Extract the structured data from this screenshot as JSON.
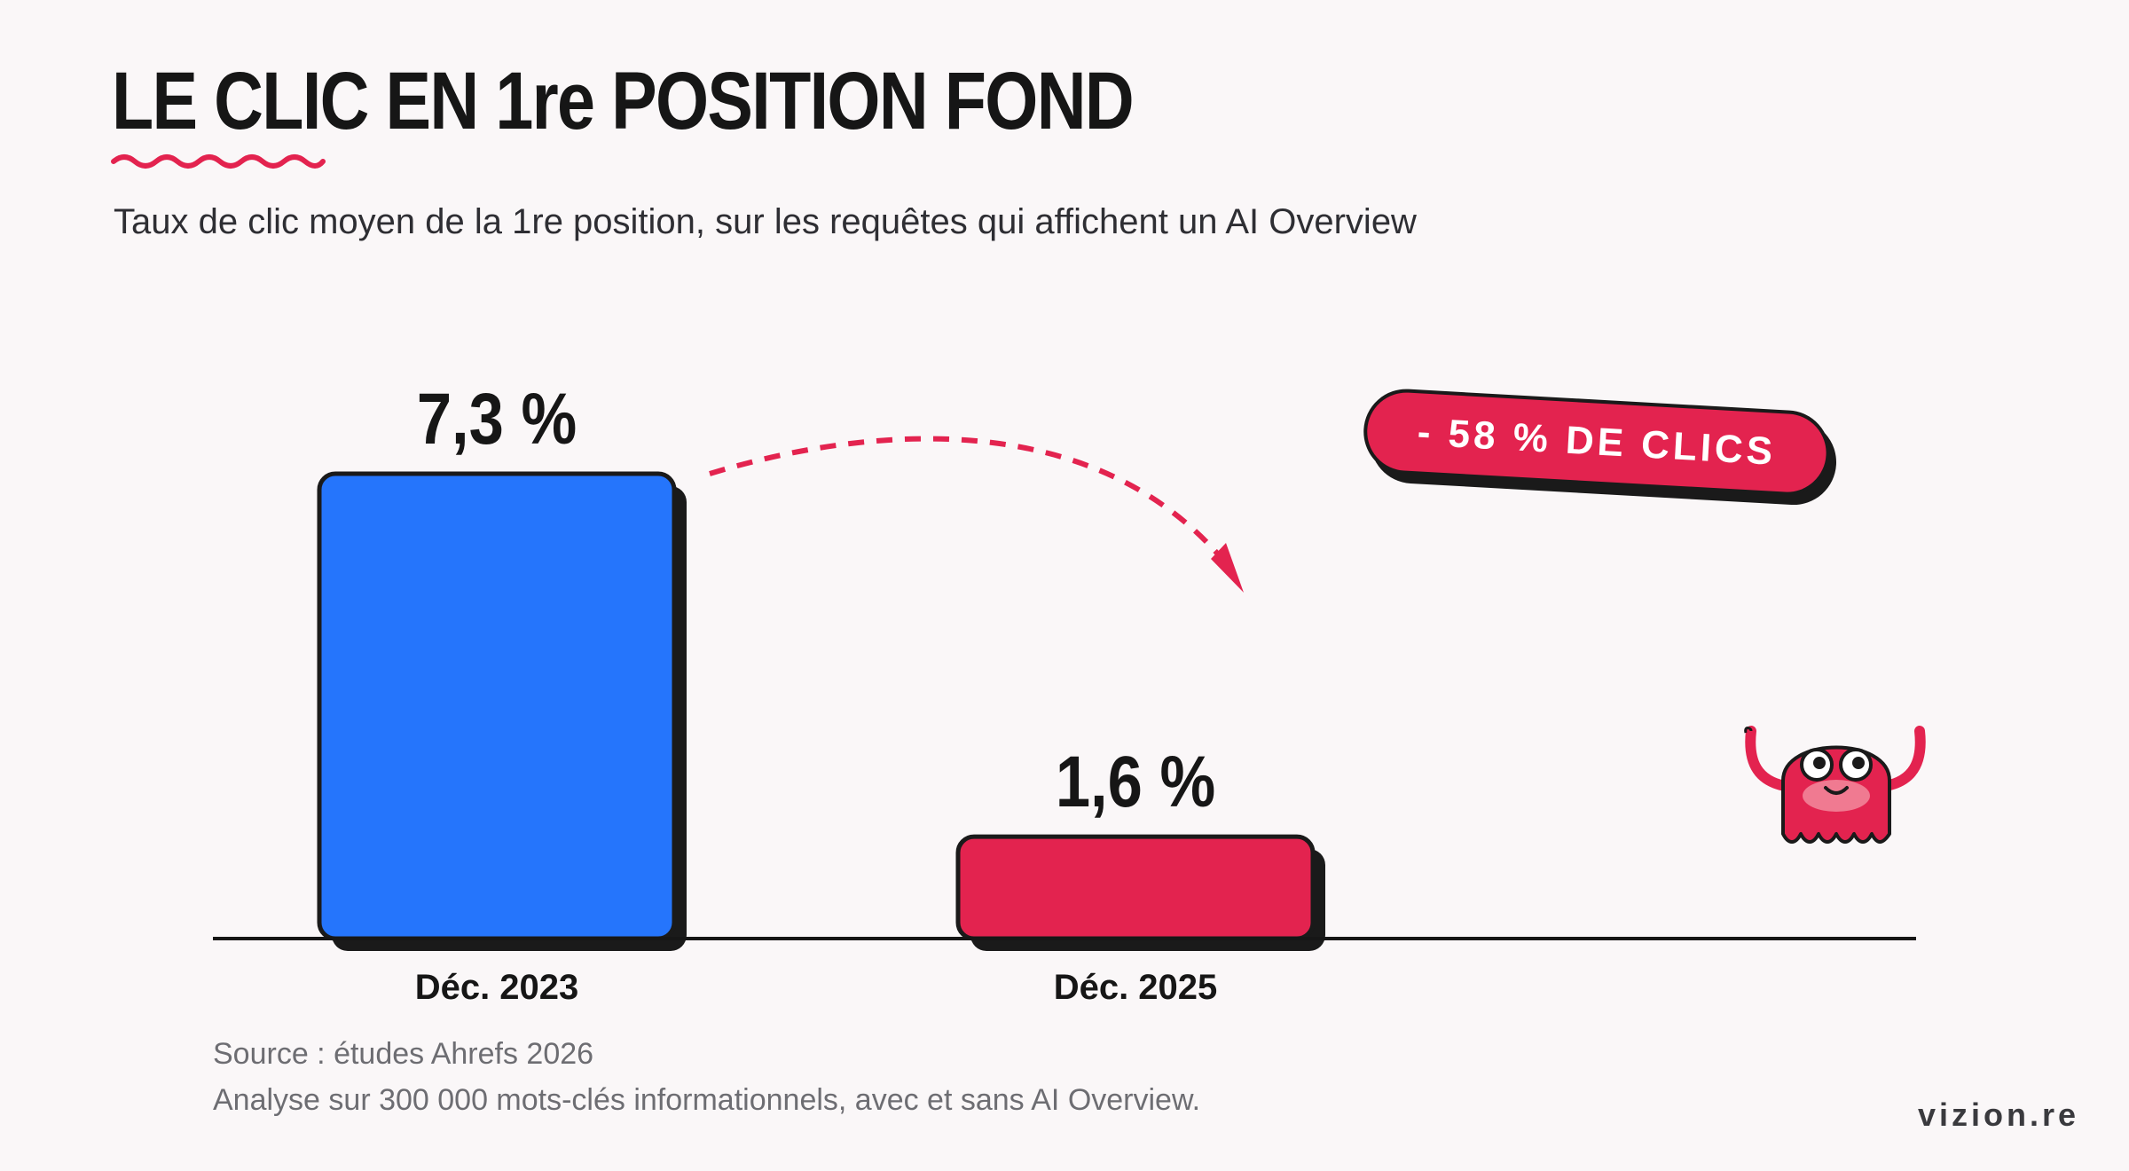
{
  "header": {
    "title": "LE CLIC EN 1re POSITION FOND",
    "subtitle": "Taux de clic moyen de la 1re position, sur les requêtes qui affichent un AI Overview"
  },
  "chart_data": {
    "type": "bar",
    "categories": [
      "Déc. 2023",
      "Déc. 2025"
    ],
    "values": [
      7.3,
      1.6
    ],
    "value_labels": [
      "7,3 %",
      "1,6 %"
    ],
    "unit": "%",
    "ylim": [
      0,
      7.3
    ],
    "colors": [
      "#2575fc",
      "#e3234f"
    ],
    "grid": false,
    "annotation": "- 58 % DE CLICS"
  },
  "footer": {
    "source": "Source : études Ahrefs 2026",
    "note": "Analyse sur 300 000 mots-clés informationnels, avec et sans AI Overview.",
    "brand": "vizion.re"
  },
  "colors": {
    "accent": "#e3234f",
    "blue": "#2575fc",
    "ink": "#161616",
    "background": "#faf7f8"
  },
  "icons": [
    "squiggle-underline",
    "dashed-arrow",
    "mascot-monster"
  ]
}
